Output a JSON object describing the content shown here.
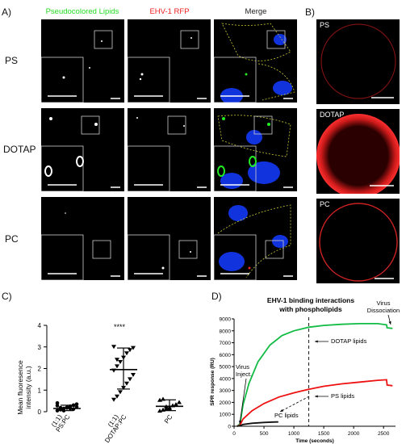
{
  "panelA": {
    "letter": "A)",
    "columns": [
      "Pseudocolored Lipids",
      "EHV-1 RFP",
      "Merge"
    ],
    "column_colors": [
      "#22dd22",
      "#ee2222",
      "#222222"
    ],
    "rows": [
      "PS",
      "DOTAP",
      "PC"
    ]
  },
  "panelB": {
    "letter": "B)",
    "labels": [
      "PS",
      "DOTAP",
      "PC"
    ]
  },
  "panelC": {
    "letter": "C)",
    "ylabel_line1": "Mean fluoresence",
    "ylabel_line2": "intensity (a.u.)",
    "significance": "****",
    "chart_data": {
      "type": "scatter",
      "categories": [
        "PS:PC (1:1)",
        "DOTAP:PC (1:1)",
        "PC"
      ],
      "category_labels": [
        [
          "PS:PC",
          "(1:1)"
        ],
        [
          "DOTAP:PC",
          "(1:1)"
        ],
        [
          "PC",
          ""
        ]
      ],
      "ylim": [
        0,
        4
      ],
      "yticks": [
        0,
        1,
        2,
        3,
        4
      ],
      "series": [
        {
          "marker": "circle",
          "values": [
            0.05,
            0.1,
            0.15,
            0.2,
            0.25,
            0.3,
            0.35,
            0.4,
            0.1,
            0.05,
            0.2,
            0.15,
            0.12,
            0.22,
            0.28,
            0.18
          ],
          "median": 0.15,
          "err": [
            0.05,
            0.3
          ]
        },
        {
          "marker": "triangle-down",
          "values": [
            0.55,
            0.7,
            0.9,
            1.1,
            1.3,
            1.5,
            1.7,
            1.9,
            2.1,
            2.3,
            2.5,
            2.7,
            2.85,
            2.95,
            3.0,
            2.4
          ],
          "median": 1.95,
          "err": [
            1.05,
            2.95
          ]
        },
        {
          "marker": "triangle-up",
          "values": [
            0.05,
            0.1,
            0.15,
            0.2,
            0.3,
            0.35,
            0.45,
            0.55,
            0.6,
            0.25,
            0.15
          ],
          "median": 0.25,
          "err": [
            0.05,
            0.55
          ]
        }
      ]
    }
  },
  "panelD": {
    "letter": "D)",
    "title_line1": "EHV-1 binding interactions",
    "title_line2": "with phospholipids",
    "ylabel": "SPR response (RU)",
    "xlabel": "Time (seconds)",
    "annotations": {
      "virus_inject": [
        "Virus",
        "Inject."
      ],
      "virus_dissociation": [
        "Virus",
        "Dissociation"
      ],
      "dotap": "DOTAP lipids",
      "ps": "PS lipids",
      "pc": "PC lipids"
    },
    "chart_data": {
      "type": "line",
      "xlim": [
        0,
        2700
      ],
      "ylim": [
        0,
        9000
      ],
      "xticks": [
        0,
        500,
        1000,
        1500,
        2000,
        2500
      ],
      "yticks": [
        0,
        1000,
        2000,
        3000,
        4000,
        5000,
        6000,
        7000,
        8000,
        9000
      ],
      "series": [
        {
          "color": "#11bb44",
          "points": [
            [
              50,
              0
            ],
            [
              100,
              200
            ],
            [
              150,
              1800
            ],
            [
              250,
              3600
            ],
            [
              400,
              5400
            ],
            [
              600,
              6800
            ],
            [
              800,
              7600
            ],
            [
              1000,
              8000
            ],
            [
              1250,
              8300
            ],
            [
              1500,
              8450
            ],
            [
              1800,
              8550
            ],
            [
              2100,
              8600
            ],
            [
              2400,
              8600
            ],
            [
              2550,
              8500
            ],
            [
              2560,
              8250
            ],
            [
              2650,
              8200
            ]
          ]
        },
        {
          "color": "#ee1111",
          "points": [
            [
              50,
              0
            ],
            [
              100,
              100
            ],
            [
              150,
              600
            ],
            [
              300,
              1300
            ],
            [
              500,
              1900
            ],
            [
              750,
              2450
            ],
            [
              1000,
              2800
            ],
            [
              1250,
              3100
            ],
            [
              1500,
              3350
            ],
            [
              1800,
              3550
            ],
            [
              2100,
              3700
            ],
            [
              2400,
              3850
            ],
            [
              2550,
              3900
            ],
            [
              2560,
              3450
            ],
            [
              2650,
              3400
            ]
          ]
        },
        {
          "color": "#111111",
          "points": [
            [
              50,
              0
            ],
            [
              100,
              50
            ],
            [
              150,
              150
            ],
            [
              300,
              250
            ],
            [
              500,
              320
            ],
            [
              700,
              360
            ],
            [
              740,
              360
            ]
          ]
        }
      ],
      "vline_x": 1250
    }
  }
}
